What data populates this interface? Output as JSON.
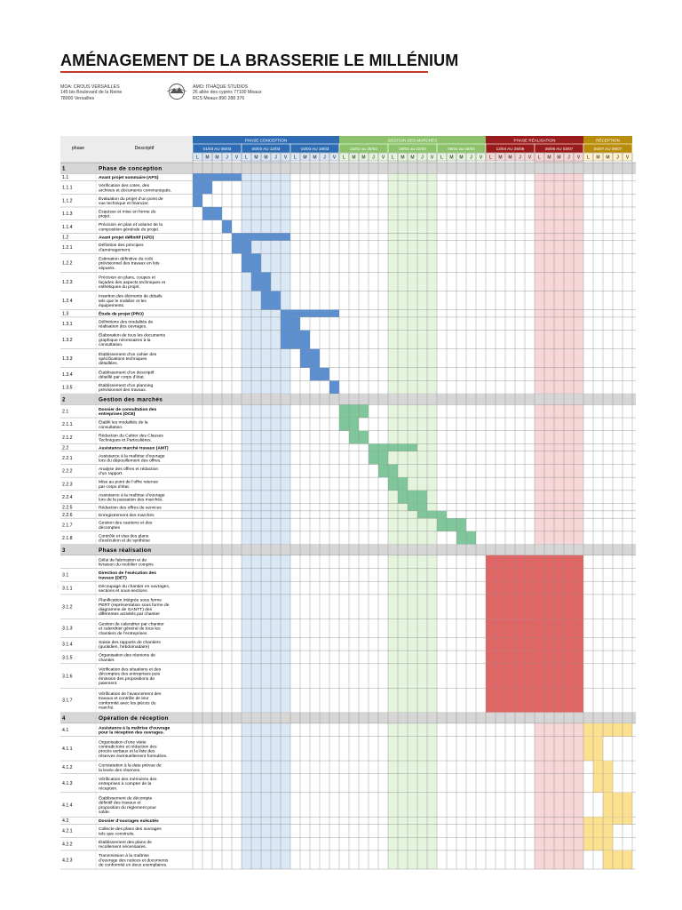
{
  "document": {
    "title": "AMÉNAGEMENT DE LA BRASSERIE LE MILLÉNIUM",
    "moa": {
      "line1": "MOA: CROUS VERSAILLES",
      "line2": "145 bis Boulevard de la Reine",
      "line3": "78000 Versailles"
    },
    "amo": {
      "line1": "AMO: ITHAQUE STUDIOS",
      "line2": "26 allée des cyprès 77100 Meaux",
      "line3": "RCS Meaux 890 288 376"
    },
    "logo_icon": "ithaque-logo-icon"
  },
  "table": {
    "col_phase": "phase",
    "col_desc": "Descriptif",
    "day_letters": [
      "L",
      "M",
      "M",
      "J",
      "V"
    ],
    "colors": {
      "conception": "#2e6db4",
      "conception_light": "#dae7f5",
      "conception_bar": "#5b8fcf",
      "marches": "#8cc26a",
      "marches_light": "#e5f4dc",
      "marches_bar": "#7fc79a",
      "realisation": "#9a1b1b",
      "realisation_light": "#f6d6d6",
      "realisation_bar": "#e06666",
      "reception": "#b88d0c",
      "reception_light": "#fff2cc",
      "reception_bar": "#fbe08f",
      "section_row": "#d6d6d6",
      "grid": "#8a8a8a"
    },
    "phase_groups": [
      {
        "name": "PHASE CONCEPTION",
        "color_key": "conception",
        "weeks": [
          {
            "label": "01/03 AU 05/03",
            "shade": false
          },
          {
            "label": "08/03 AU 12/03",
            "shade": true
          },
          {
            "label": "15/03 AU 19/03",
            "shade": false
          }
        ]
      },
      {
        "name": "GESTION DES MARCHÉS",
        "color_key": "marches",
        "weeks": [
          {
            "label": "22/03 au 26/03",
            "shade": false
          },
          {
            "label": "29/03 au 02/04",
            "shade": true
          },
          {
            "label": "05/04 au 09/04",
            "shade": false
          }
        ]
      },
      {
        "name": "PHASE RÉALISATION",
        "color_key": "realisation",
        "weeks": [
          {
            "label": "12/04 AU 25/06",
            "shade": false
          },
          {
            "label": "28/06 AU 03/07",
            "shade": true
          }
        ]
      },
      {
        "name": "RÉCEPTION",
        "color_key": "reception",
        "weeks": [
          {
            "label": "05/07 AU 09/07",
            "shade": false
          }
        ]
      }
    ],
    "rows": [
      {
        "num": "1",
        "desc": "Phase de conception",
        "type": "section"
      },
      {
        "num": "1.1",
        "desc": "Avant projet sommaire (APS)",
        "type": "bold",
        "bar": [
          0,
          4
        ],
        "color_key": "conception"
      },
      {
        "num": "1.1.1",
        "desc": "Vérification des cotes, des archives et documents communiqués.",
        "type": "task",
        "bar": [
          0,
          1
        ],
        "color_key": "conception"
      },
      {
        "num": "1.1.2",
        "desc": "Évaluation du projet d’un point de vue technique et financier.",
        "type": "task",
        "bar": [
          0,
          0
        ],
        "color_key": "conception"
      },
      {
        "num": "1.1.3",
        "desc": "Esquisse et mise en forme du projet.",
        "type": "task",
        "bar": [
          1,
          2
        ],
        "color_key": "conception"
      },
      {
        "num": "1.1.4",
        "desc": "Précision en plan et volume de la composition générale du projet.",
        "type": "task",
        "bar": [
          3,
          3
        ],
        "color_key": "conception"
      },
      {
        "num": "1.2",
        "desc": "Avant projet définitif (APD)",
        "type": "bold",
        "bar": [
          4,
          9
        ],
        "color_key": "conception"
      },
      {
        "num": "1.2.1",
        "desc": "Définition des principes d’aménagement.",
        "type": "task",
        "bar": [
          4,
          5
        ],
        "color_key": "conception"
      },
      {
        "num": "1.2.2",
        "desc": "Estimation définitive du coût prévisionnel des travaux en lots séparés.",
        "type": "task",
        "bar": [
          5,
          6
        ],
        "color_key": "conception"
      },
      {
        "num": "1.2.3",
        "desc": "Précision en plans, coupes et façades des aspects techniques et esthétiques du projet.",
        "type": "task",
        "bar": [
          6,
          7
        ],
        "color_key": "conception"
      },
      {
        "num": "1.2.4",
        "desc": "Insertion des éléments de détails tels que le mobilier et les équipements.",
        "type": "task",
        "bar": [
          7,
          8
        ],
        "color_key": "conception"
      },
      {
        "num": "1.3",
        "desc": "Étude de projet (PRO)",
        "type": "bold",
        "bar": [
          9,
          14
        ],
        "color_key": "conception"
      },
      {
        "num": "1.3.1",
        "desc": "Définitions des modalités de réalisation des ouvrages.",
        "type": "task",
        "bar": [
          9,
          10
        ],
        "color_key": "conception"
      },
      {
        "num": "1.3.2",
        "desc": "Élaboration de tous les documents graphique nécessaires à la consultation.",
        "type": "task",
        "bar": [
          9,
          11
        ],
        "color_key": "conception"
      },
      {
        "num": "1.3.3",
        "desc": "Établissement d’un cahier des spécifications techniques détaillées.",
        "type": "task",
        "bar": [
          11,
          12
        ],
        "color_key": "conception"
      },
      {
        "num": "1.3.4",
        "desc": "Établissement d’un descriptif détaillé par corps d’état.",
        "type": "task",
        "bar": [
          12,
          13
        ],
        "color_key": "conception"
      },
      {
        "num": "1.3.5",
        "desc": "Établissement d’un planning prévisionnel des travaux.",
        "type": "task",
        "bar": [
          14,
          14
        ],
        "color_key": "conception"
      },
      {
        "num": "2",
        "desc": "Gestion des marchés",
        "type": "section"
      },
      {
        "num": "2.1",
        "desc": "Dossier de consultation des entreprises (DCE)",
        "type": "bold",
        "bar": [
          15,
          17
        ],
        "color_key": "marches"
      },
      {
        "num": "2.1.1",
        "desc": "Établit les modalités de la consultation.",
        "type": "task",
        "bar": [
          15,
          16
        ],
        "color_key": "marches"
      },
      {
        "num": "2.1.2",
        "desc": "Rédaction du Cahier des Clauses Techniques et Particulières.",
        "type": "task",
        "bar": [
          16,
          17
        ],
        "color_key": "marches"
      },
      {
        "num": "2.2",
        "desc": "Assistance marché travaux (AMT)",
        "type": "bold",
        "bar": [
          18,
          22
        ],
        "color_key": "marches"
      },
      {
        "num": "2.2.1",
        "desc": "Assistance à la maîtrise d’ouvrage lors du dépouillement des offres.",
        "type": "task",
        "bar": [
          18,
          19
        ],
        "color_key": "marches"
      },
      {
        "num": "2.2.2",
        "desc": "Analyse des offres et rédaction d’un rapport.",
        "type": "task",
        "bar": [
          19,
          20
        ],
        "color_key": "marches"
      },
      {
        "num": "2.2.3",
        "desc": "Mise au point de l’offre retenue par corps d’état.",
        "type": "task",
        "bar": [
          20,
          21
        ],
        "color_key": "marches"
      },
      {
        "num": "2.2.4",
        "desc": "Assistance à la maîtrise d’ouvrage lors de la passation des marchés.",
        "type": "task",
        "bar": [
          21,
          23
        ],
        "color_key": "marches"
      },
      {
        "num": "2.2.5",
        "desc": "Rédaction des offres de services",
        "type": "task",
        "bar": [
          22,
          23
        ],
        "color_key": "marches"
      },
      {
        "num": "2.2.6",
        "desc": "Enregistrement des marchés",
        "type": "task",
        "bar": [
          23,
          25
        ],
        "color_key": "marches"
      },
      {
        "num": "2.1.7",
        "desc": "Gestion des cautions et des décomptes",
        "type": "task",
        "bar": [
          25,
          27
        ],
        "color_key": "marches"
      },
      {
        "num": "2.1.8",
        "desc": "Contrôle et visa des plans d’exécution et de synthèse",
        "type": "task",
        "bar": [
          27,
          28
        ],
        "color_key": "marches"
      },
      {
        "num": "3",
        "desc": "Phase réalisation",
        "type": "section"
      },
      {
        "num": "",
        "desc": "Délai de fabrication et de livraison du mobilier compris",
        "type": "task",
        "bar": [
          30,
          39
        ],
        "color_key": "realisation"
      },
      {
        "num": "3.1",
        "desc": "Direction de l’exécution des travaux (DET)",
        "type": "bold",
        "bar": [
          30,
          39
        ],
        "color_key": "realisation"
      },
      {
        "num": "3.1.1",
        "desc": "Découpage du chantier en ouvrages, sections et sous-sections",
        "type": "task",
        "bar": [
          30,
          39
        ],
        "color_key": "realisation"
      },
      {
        "num": "3.1.2",
        "desc": "Planification intégrée sous forme PERT (représentation sous forme de diagramme de GANTT) des différentes activités par chantier",
        "type": "task",
        "bar": [
          30,
          39
        ],
        "color_key": "realisation"
      },
      {
        "num": "3.1.3",
        "desc": "Gestion de calendrier par chantier et calendrier général de tous les chantiers de l’entreprises.",
        "type": "task",
        "bar": [
          30,
          39
        ],
        "color_key": "realisation"
      },
      {
        "num": "3.1.4",
        "desc": "Saisie des rapports de chantiers (quotidien, hebdomadaire)",
        "type": "task",
        "bar": [
          30,
          39
        ],
        "color_key": "realisation"
      },
      {
        "num": "3.1.5",
        "desc": "Organisation des réunions de chantier.",
        "type": "task",
        "bar": [
          30,
          39
        ],
        "color_key": "realisation"
      },
      {
        "num": "3.1.6",
        "desc": "Vérification des situations et des décomptes des entreprises puis émission des propositions de paiement.",
        "type": "task",
        "bar": [
          30,
          39
        ],
        "color_key": "realisation"
      },
      {
        "num": "3.1.7",
        "desc": "Vérification de l’avancement des travaux et contrôle de leur conformité avec les pièces du marché.",
        "type": "task",
        "bar": [
          30,
          39
        ],
        "color_key": "realisation"
      },
      {
        "num": "4",
        "desc": "Opération de réception",
        "type": "section"
      },
      {
        "num": "4.1",
        "desc": "Assistance à la maîtrise d’ouvrage pour la réception des ouvrages.",
        "type": "bold",
        "bar": [
          40,
          44
        ],
        "color_key": "reception"
      },
      {
        "num": "4.1.1",
        "desc": "Organisation d’une visite contradictoire et rédaction des procès verbaux et la liste des réserves éventuellement formulées.",
        "type": "task",
        "bar": [
          40,
          41
        ],
        "color_key": "reception"
      },
      {
        "num": "4.1.2",
        "desc": "Constatation à la date prévue de la levée des réserves.",
        "type": "task",
        "bar": [
          41,
          42
        ],
        "color_key": "reception"
      },
      {
        "num": "4.1.3",
        "desc": "Vérification des mémoires des entreprises à compter de la réception.",
        "type": "task",
        "bar": [
          41,
          42
        ],
        "color_key": "reception"
      },
      {
        "num": "4.1.4",
        "desc": "Établissement du décompte définitif des travaux et proposition du règlement pour solde.",
        "type": "task",
        "bar": [
          42,
          44
        ],
        "color_key": "reception"
      },
      {
        "num": "4.2",
        "desc": "Dossier d’ouvrages exécutés",
        "type": "bold",
        "bar": [
          40,
          44
        ],
        "color_key": "reception"
      },
      {
        "num": "4.2.1",
        "desc": "Collecte des plans des ouvrages tels que construits.",
        "type": "task",
        "bar": [
          40,
          42
        ],
        "color_key": "reception"
      },
      {
        "num": "4.2.2",
        "desc": "Établissement des plans de recollement nécessaires.",
        "type": "task",
        "bar": [
          40,
          42
        ],
        "color_key": "reception"
      },
      {
        "num": "4.2.3",
        "desc": "Transmission à la maîtrise d’ouvrage des notices et documents de conformité en deux exemplaires.",
        "type": "task",
        "bar": [
          42,
          44
        ],
        "color_key": "reception"
      }
    ]
  }
}
